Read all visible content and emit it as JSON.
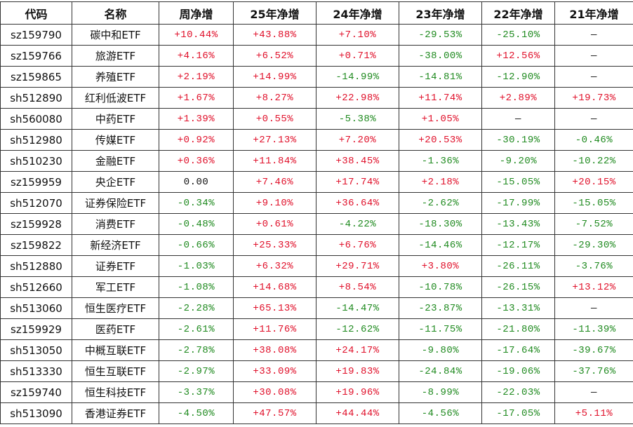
{
  "colors": {
    "positive": "#e0102a",
    "negative": "#1f8a1f"
  },
  "headers": [
    "代码",
    "名称",
    "周净增",
    "25年净增",
    "24年净增",
    "23年净增",
    "22年净增",
    "21年净增"
  ],
  "rows": [
    [
      "sz159790",
      "碳中和ETF",
      "+10.44%",
      "+43.88%",
      "+7.10%",
      "-29.53%",
      "-25.10%",
      "—"
    ],
    [
      "sz159766",
      "旅游ETF",
      "+4.16%",
      "+6.52%",
      "+0.71%",
      "-38.00%",
      "+12.56%",
      "—"
    ],
    [
      "sz159865",
      "养殖ETF",
      "+2.19%",
      "+14.99%",
      "-14.99%",
      "-14.81%",
      "-12.90%",
      "—"
    ],
    [
      "sh512890",
      "红利低波ETF",
      "+1.67%",
      "+8.27%",
      "+22.98%",
      "+11.74%",
      "+2.89%",
      "+19.73%"
    ],
    [
      "sh560080",
      "中药ETF",
      "+1.39%",
      "+0.55%",
      "-5.38%",
      "+1.05%",
      "—",
      "—"
    ],
    [
      "sh512980",
      "传媒ETF",
      "+0.92%",
      "+27.13%",
      "+7.20%",
      "+20.53%",
      "-30.19%",
      "-0.46%"
    ],
    [
      "sh510230",
      "金融ETF",
      "+0.36%",
      "+11.84%",
      "+38.45%",
      "-1.36%",
      "-9.20%",
      "-10.22%"
    ],
    [
      "sz159959",
      "央企ETF",
      "0.00",
      "+7.46%",
      "+17.74%",
      "+2.18%",
      "-15.05%",
      "+20.15%"
    ],
    [
      "sh512070",
      "证券保险ETF",
      "-0.34%",
      "+9.10%",
      "+36.64%",
      "-2.62%",
      "-17.99%",
      "-15.05%"
    ],
    [
      "sz159928",
      "消费ETF",
      "-0.48%",
      "+0.61%",
      "-4.22%",
      "-18.30%",
      "-13.43%",
      "-7.52%"
    ],
    [
      "sz159822",
      "新经济ETF",
      "-0.66%",
      "+25.33%",
      "+6.76%",
      "-14.46%",
      "-12.17%",
      "-29.30%"
    ],
    [
      "sh512880",
      "证券ETF",
      "-1.03%",
      "+6.32%",
      "+29.71%",
      "+3.80%",
      "-26.11%",
      "-3.76%"
    ],
    [
      "sh512660",
      "军工ETF",
      "-1.08%",
      "+14.68%",
      "+8.54%",
      "-10.78%",
      "-26.15%",
      "+13.12%"
    ],
    [
      "sh513060",
      "恒生医疗ETF",
      "-2.28%",
      "+65.13%",
      "-14.47%",
      "-23.87%",
      "-13.31%",
      "—"
    ],
    [
      "sz159929",
      "医药ETF",
      "-2.61%",
      "+11.76%",
      "-12.62%",
      "-11.75%",
      "-21.80%",
      "-11.39%"
    ],
    [
      "sh513050",
      "中概互联ETF",
      "-2.78%",
      "+38.08%",
      "+24.17%",
      "-9.80%",
      "-17.64%",
      "-39.67%"
    ],
    [
      "sh513330",
      "恒生互联ETF",
      "-2.97%",
      "+33.09%",
      "+19.83%",
      "-24.84%",
      "-19.06%",
      "-37.76%"
    ],
    [
      "sz159740",
      "恒生科技ETF",
      "-3.37%",
      "+30.08%",
      "+19.96%",
      "-8.99%",
      "-22.03%",
      "—"
    ],
    [
      "sh513090",
      "香港证券ETF",
      "-4.50%",
      "+47.57%",
      "+44.44%",
      "-4.56%",
      "-17.05%",
      "+5.11%"
    ]
  ]
}
